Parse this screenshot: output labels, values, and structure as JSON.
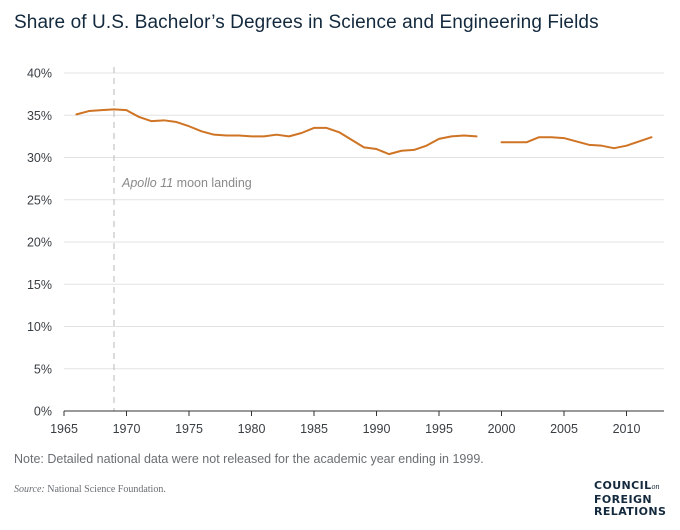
{
  "title": "Share of U.S. Bachelor’s Degrees in Science and Engineering Fields",
  "note": "Note: Detailed national data were not released for the academic year ending in 1999.",
  "source": {
    "label": "Source:",
    "text": "National Science Foundation."
  },
  "logo": {
    "line1": "COUNCIL",
    "line1_suffix": "on",
    "line2": "FOREIGN",
    "line3": "RELATIONS"
  },
  "colors": {
    "line": "#cf7424",
    "grid": "#e3e3e3",
    "axis": "#333333",
    "annotation_line": "#b8b8b8",
    "annotation_text": "#8a8a8a"
  },
  "chart_data": {
    "type": "line",
    "title": "Share of U.S. Bachelor’s Degrees in Science and Engineering Fields",
    "xlabel": "",
    "ylabel": "",
    "xlim": [
      1965,
      2013
    ],
    "ylim": [
      0,
      40
    ],
    "x_ticks": [
      1965,
      1970,
      1975,
      1980,
      1985,
      1990,
      1995,
      2000,
      2005,
      2010
    ],
    "y_ticks": [
      0,
      5,
      10,
      15,
      20,
      25,
      30,
      35,
      40
    ],
    "y_tick_suffix": "%",
    "grid": "horizontal",
    "annotation": {
      "x": 1969,
      "label_italic": "Apollo 11",
      "label_rest": " moon landing"
    },
    "series": [
      {
        "segments": [
          [
            [
              1966,
              35.1
            ],
            [
              1967,
              35.5
            ],
            [
              1968,
              35.6
            ],
            [
              1969,
              35.7
            ],
            [
              1970,
              35.6
            ],
            [
              1971,
              34.8
            ],
            [
              1972,
              34.3
            ],
            [
              1973,
              34.4
            ],
            [
              1974,
              34.2
            ],
            [
              1975,
              33.7
            ],
            [
              1976,
              33.1
            ],
            [
              1977,
              32.7
            ],
            [
              1978,
              32.6
            ],
            [
              1979,
              32.6
            ],
            [
              1980,
              32.5
            ],
            [
              1981,
              32.5
            ],
            [
              1982,
              32.7
            ],
            [
              1983,
              32.5
            ],
            [
              1984,
              32.9
            ],
            [
              1985,
              33.5
            ],
            [
              1986,
              33.5
            ],
            [
              1987,
              33.0
            ],
            [
              1988,
              32.1
            ],
            [
              1989,
              31.2
            ],
            [
              1990,
              31.0
            ],
            [
              1991,
              30.4
            ],
            [
              1992,
              30.8
            ],
            [
              1993,
              30.9
            ],
            [
              1994,
              31.4
            ],
            [
              1995,
              32.2
            ],
            [
              1996,
              32.5
            ],
            [
              1997,
              32.6
            ],
            [
              1998,
              32.5
            ]
          ],
          [
            [
              2000,
              31.8
            ],
            [
              2001,
              31.8
            ],
            [
              2002,
              31.8
            ],
            [
              2003,
              32.4
            ],
            [
              2004,
              32.4
            ],
            [
              2005,
              32.3
            ],
            [
              2006,
              31.9
            ],
            [
              2007,
              31.5
            ],
            [
              2008,
              31.4
            ],
            [
              2009,
              31.1
            ],
            [
              2010,
              31.4
            ],
            [
              2011,
              31.9
            ],
            [
              2012,
              32.4
            ]
          ]
        ]
      }
    ]
  }
}
